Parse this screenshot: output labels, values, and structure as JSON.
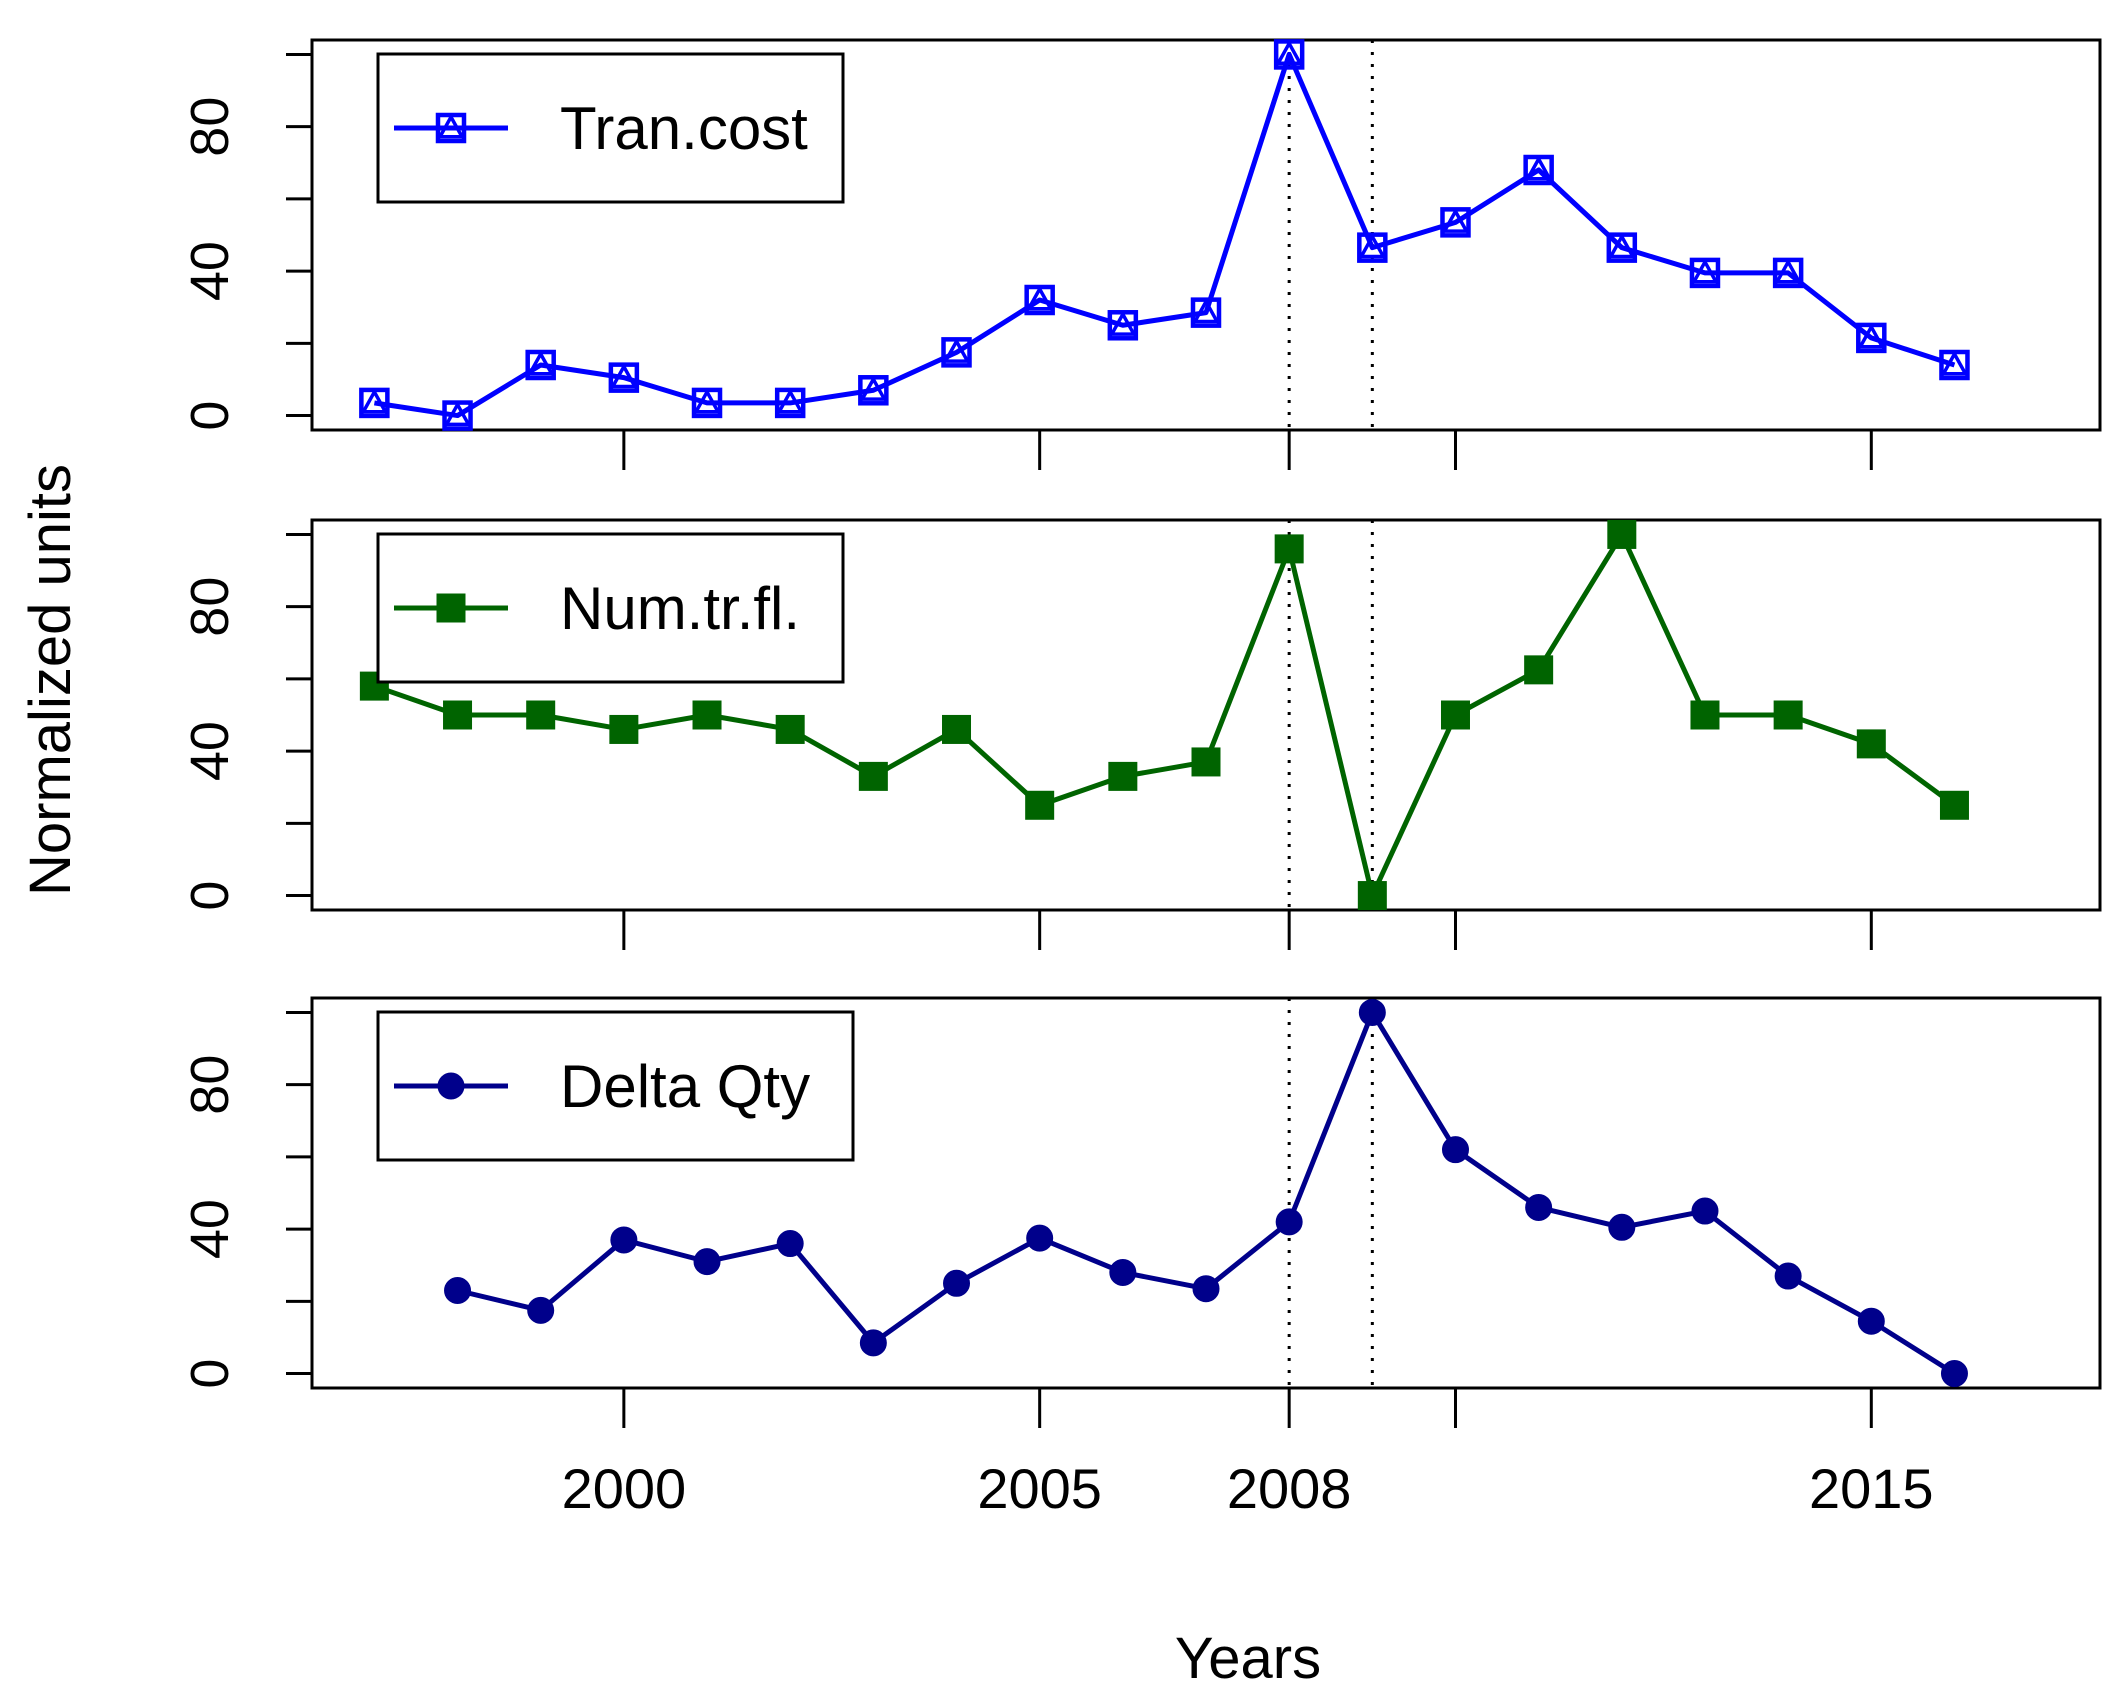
{
  "chart_data": {
    "type": "line",
    "xlabel": "Years",
    "ylabel": "Normalized units",
    "x_tick_labels": [
      "2000",
      "2005",
      "2008",
      "2015"
    ],
    "x_ticks": [
      2000,
      2005,
      2008,
      2010,
      2015
    ],
    "xlim": [
      1996.25,
      2017.75
    ],
    "vlines": [
      2008,
      2009
    ],
    "y_ticks": [
      0,
      20,
      40,
      60,
      80,
      100
    ],
    "y_tick_labels": [
      "0",
      "40",
      "80"
    ],
    "ylim": [
      -4,
      104
    ],
    "series": [
      {
        "name": "Tran.cost",
        "color": "#0000ff",
        "marker": "square-open-triangle",
        "x": [
          1997,
          1998,
          1999,
          2000,
          2001,
          2002,
          2003,
          2004,
          2005,
          2006,
          2007,
          2008,
          2009,
          2010,
          2011,
          2012,
          2013,
          2014,
          2015,
          2016
        ],
        "values": [
          3.5,
          0,
          14,
          10.5,
          3.5,
          3.5,
          7,
          17.5,
          32,
          25,
          28.5,
          100,
          46.5,
          53.5,
          68,
          46.5,
          39.5,
          39.5,
          21.5,
          14
        ]
      },
      {
        "name": "Num.tr.fl.",
        "color": "#006400",
        "marker": "square-filled",
        "x": [
          1997,
          1998,
          1999,
          2000,
          2001,
          2002,
          2003,
          2004,
          2005,
          2006,
          2007,
          2008,
          2009,
          2010,
          2011,
          2012,
          2013,
          2014,
          2015,
          2016
        ],
        "values": [
          58,
          50,
          50,
          46,
          50,
          46,
          33,
          46,
          25,
          33,
          37,
          96,
          0,
          50,
          62.5,
          100,
          50,
          50,
          42,
          25
        ]
      },
      {
        "name": "Delta Qty",
        "color": "#00008b",
        "marker": "circle-filled",
        "x": [
          1998,
          1999,
          2000,
          2001,
          2002,
          2003,
          2004,
          2005,
          2006,
          2007,
          2008,
          2009,
          2010,
          2011,
          2012,
          2013,
          2014,
          2015,
          2016
        ],
        "values": [
          23,
          17.5,
          37,
          31,
          36,
          8.5,
          25,
          37.5,
          28,
          23.5,
          42,
          100,
          62,
          46,
          40.5,
          45,
          27,
          14.5,
          0
        ]
      }
    ]
  }
}
